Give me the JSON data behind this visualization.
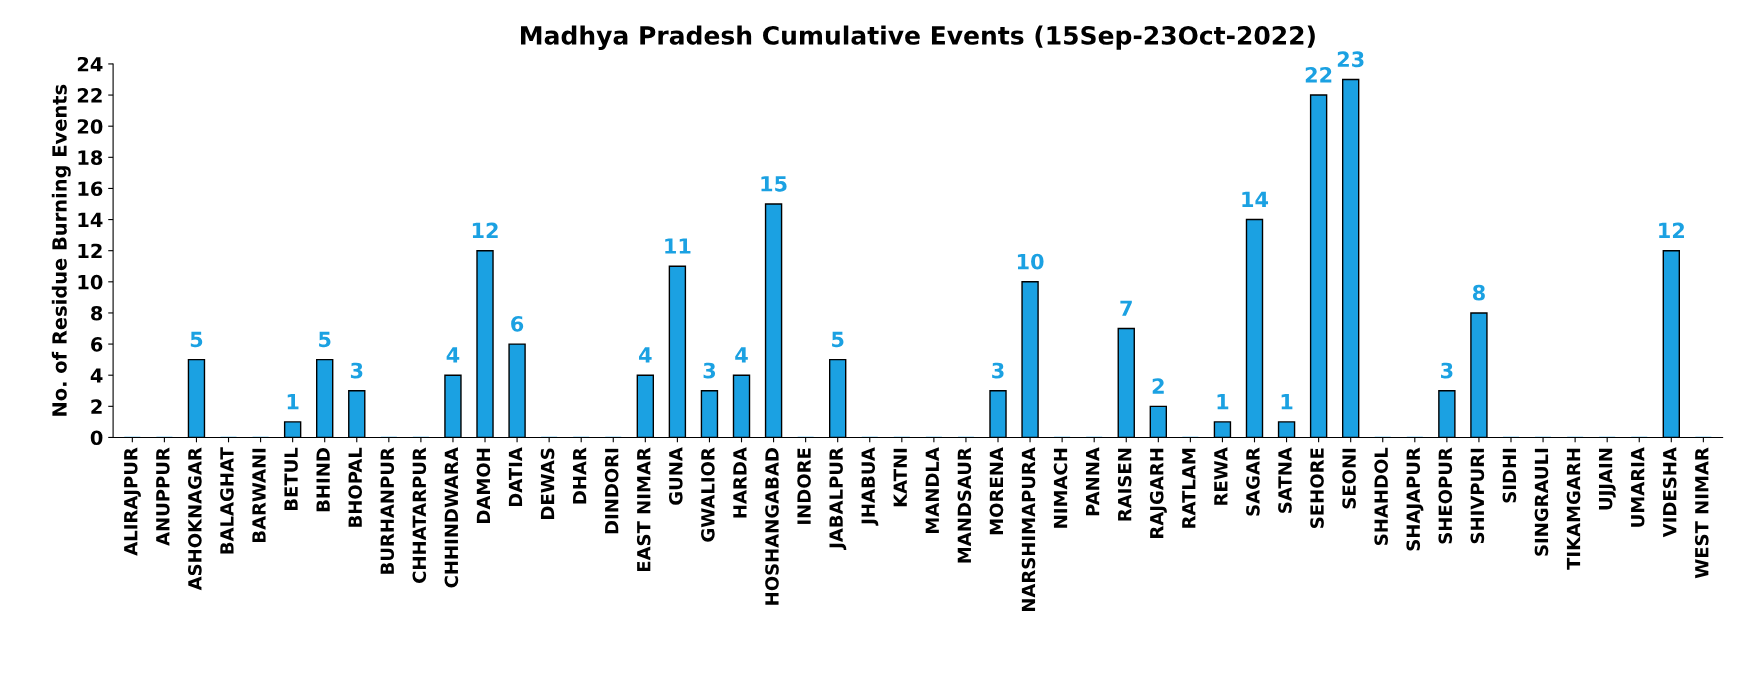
{
  "chart_data": {
    "type": "bar",
    "title": "Madhya Pradesh Cumulative Events (15Sep-23Oct-2022)",
    "ylabel": "No. of Residue Burning Events",
    "categories": [
      "ALIRAJPUR",
      "ANUPPUR",
      "ASHOKNAGAR",
      "BALAGHAT",
      "BARWANI",
      "BETUL",
      "BHIND",
      "BHOPAL",
      "BURHANPUR",
      "CHHATARPUR",
      "CHHINDWARA",
      "DAMOH",
      "DATIA",
      "DEWAS",
      "DHAR",
      "DINDORI",
      "EAST NIMAR",
      "GUNA",
      "GWALIOR",
      "HARDA",
      "HOSHANGABAD",
      "INDORE",
      "JABALPUR",
      "JHABUA",
      "KATNI",
      "MANDLA",
      "MANDSAUR",
      "MORENA",
      "NARSHIMAPURA",
      "NIMACH",
      "PANNA",
      "RAISEN",
      "RAJGARH",
      "RATLAM",
      "REWA",
      "SAGAR",
      "SATNA",
      "SEHORE",
      "SEONI",
      "SHAHDOL",
      "SHAJAPUR",
      "SHEOPUR",
      "SHIVPURI",
      "SIDHI",
      "SINGRAULI",
      "TIKAMGARH",
      "UJJAIN",
      "UMARIA",
      "VIDESHA",
      "WEST NIMAR"
    ],
    "series": [
      {
        "color": "#1ba1e2",
        "values": [
          0,
          0,
          5,
          0,
          0,
          1,
          5,
          3,
          0,
          0,
          4,
          12,
          6,
          0,
          0,
          0,
          4,
          11,
          3,
          4,
          15,
          0,
          5,
          0,
          0,
          0,
          0,
          3,
          10,
          0,
          0,
          7,
          2,
          0,
          1,
          14,
          1,
          22,
          23,
          0,
          0,
          3,
          8,
          0,
          0,
          0,
          0,
          0,
          12,
          0
        ],
        "value_labels": [
          null,
          null,
          "5",
          null,
          null,
          "1",
          "5",
          "3",
          null,
          null,
          "4",
          "12",
          "6",
          null,
          null,
          null,
          "4",
          "11",
          "3",
          "4",
          "15",
          null,
          "5",
          null,
          null,
          null,
          null,
          "3",
          "10",
          null,
          null,
          "7",
          "2",
          null,
          "1",
          "14",
          "1",
          "22",
          "23",
          null,
          null,
          "3",
          "8",
          null,
          null,
          null,
          null,
          null,
          "12",
          null
        ]
      }
    ],
    "ylim": [
      0,
      24
    ],
    "yticks": [
      0,
      2,
      4,
      6,
      8,
      10,
      12,
      14,
      16,
      18,
      20,
      22,
      24
    ],
    "grid": false,
    "legend": false
  }
}
